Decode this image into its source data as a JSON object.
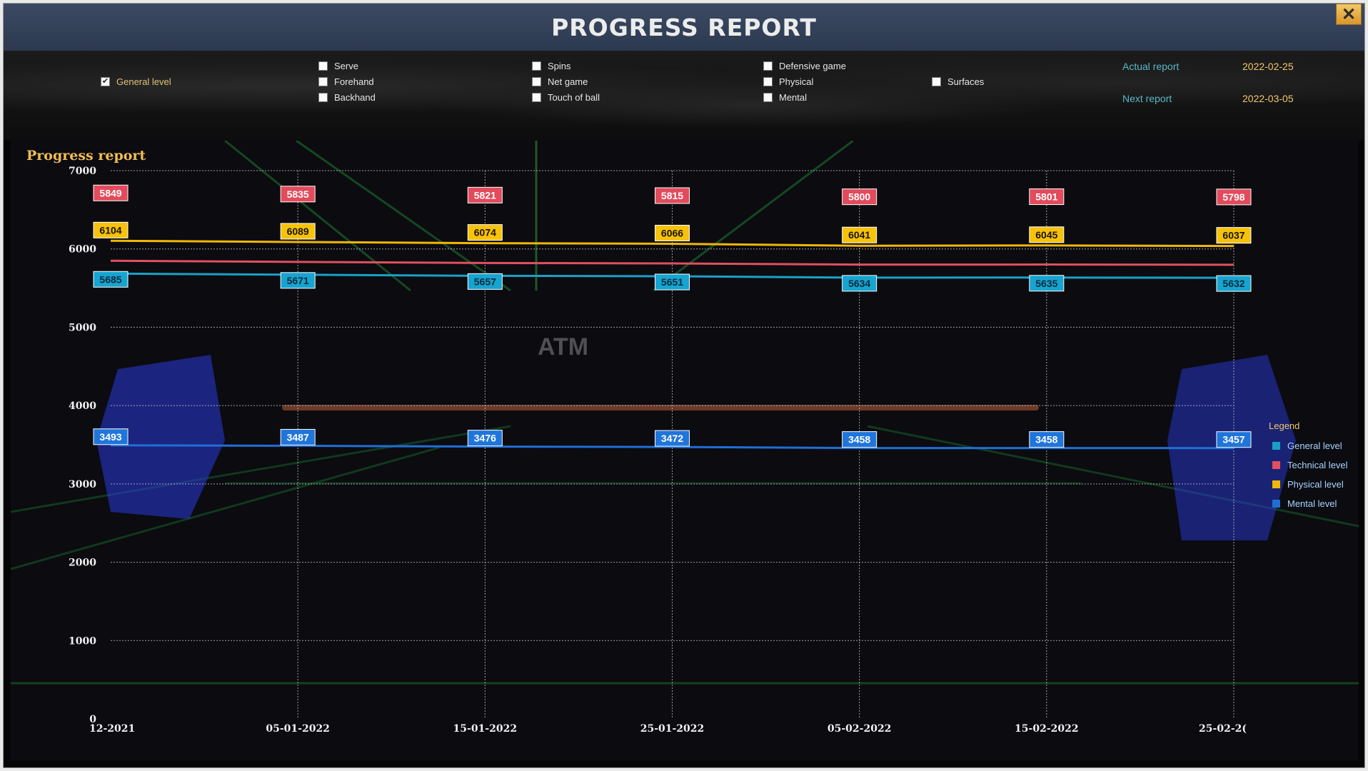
{
  "window": {
    "title": "PROGRESS REPORT"
  },
  "filters": {
    "general_level": "General level",
    "serve": "Serve",
    "forehand": "Forehand",
    "backhand": "Backhand",
    "spins": "Spins",
    "net_game": "Net game",
    "touch_of_ball": "Touch of ball",
    "defensive_game": "Defensive game",
    "physical": "Physical",
    "mental": "Mental",
    "surfaces": "Surfaces"
  },
  "reports": {
    "actual_label": "Actual report",
    "actual_date": "2022-02-25",
    "next_label": "Next report",
    "next_date": "2022-03-05"
  },
  "watermark": "ATM",
  "chart_data": {
    "type": "line",
    "title": "Progress report",
    "categories": [
      "12-2021",
      "05-01-2022",
      "15-01-2022",
      "25-01-2022",
      "05-02-2022",
      "15-02-2022",
      "25-02-2("
    ],
    "ylim": [
      0,
      7000
    ],
    "yticks": [
      0,
      1000,
      2000,
      3000,
      4000,
      5000,
      6000,
      7000
    ],
    "grid": true,
    "legend_title": "Legend",
    "legend_position": "right",
    "series": [
      {
        "name": "General level",
        "color": "#1aa0c8",
        "values": [
          5685,
          5671,
          5657,
          5651,
          5634,
          5635,
          5632
        ]
      },
      {
        "name": "Technical level",
        "color": "#e0505e",
        "values": [
          5849,
          5835,
          5821,
          5815,
          5800,
          5801,
          5798
        ]
      },
      {
        "name": "Physical level",
        "color": "#f2b705",
        "values": [
          6104,
          6089,
          6074,
          6066,
          6041,
          6045,
          6037
        ]
      },
      {
        "name": "Mental level",
        "color": "#1f6fd6",
        "values": [
          3493,
          3487,
          3476,
          3472,
          3458,
          3458,
          3457
        ]
      }
    ]
  }
}
